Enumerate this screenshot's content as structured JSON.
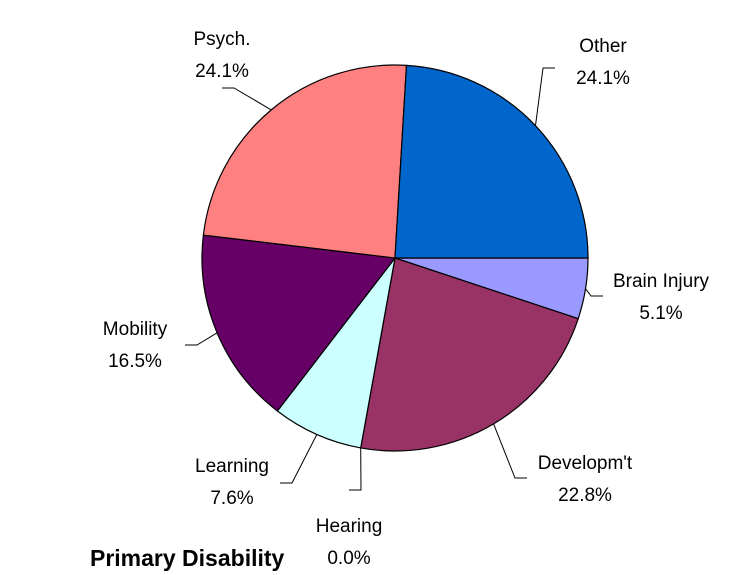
{
  "chart_data": {
    "type": "pie",
    "title": "Primary Disability",
    "categories": [
      "Brain Injury",
      "Developm't",
      "Hearing",
      "Learning",
      "Mobility",
      "Psych.",
      "Other"
    ],
    "values": [
      5.1,
      22.8,
      0.0,
      7.6,
      16.5,
      24.1,
      24.1
    ],
    "value_labels": [
      "5.1%",
      "22.8%",
      "0.0%",
      "7.6%",
      "16.5%",
      "24.1%",
      "24.1%"
    ],
    "colors": [
      "#9999ff",
      "#993366",
      "#ffffcc",
      "#ccffff",
      "#660066",
      "#ff8080",
      "#0066cc"
    ]
  }
}
